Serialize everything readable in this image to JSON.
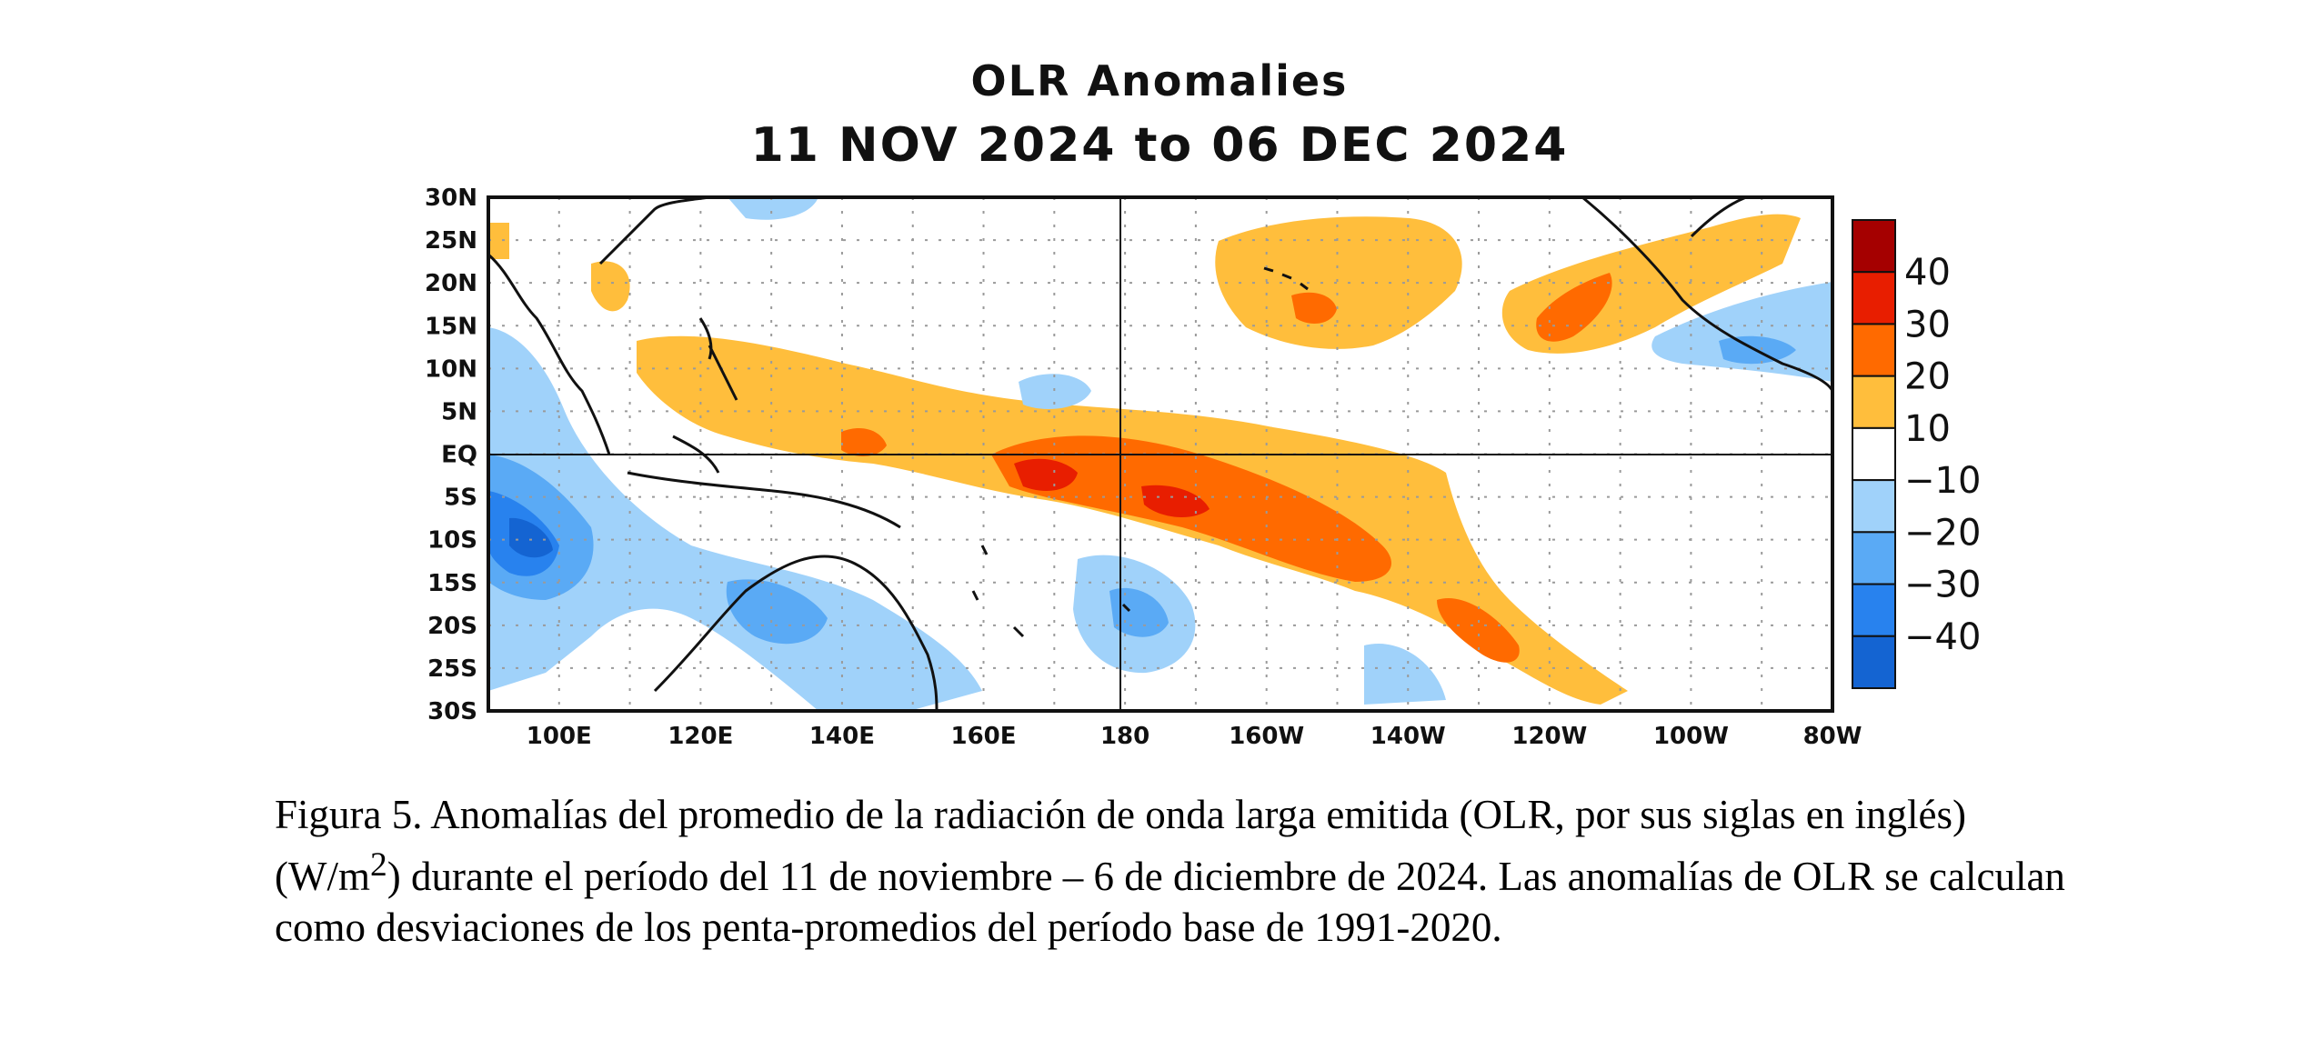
{
  "map": {
    "title_line1": "OLR Anomalies",
    "title_line2": "11 NOV 2024 to 06 DEC 2024",
    "lat_ticks": [
      "30N",
      "25N",
      "20N",
      "15N",
      "10N",
      "5N",
      "EQ",
      "5S",
      "10S",
      "15S",
      "20S",
      "25S",
      "30S"
    ],
    "lon_ticks": [
      "100E",
      "120E",
      "140E",
      "160E",
      "180",
      "160W",
      "140W",
      "120W",
      "100W",
      "80W"
    ],
    "colorbar": {
      "labels": [
        "40",
        "30",
        "20",
        "10",
        "−10",
        "−20",
        "−30",
        "−40"
      ],
      "colors": [
        "#a50000",
        "#e81e00",
        "#ff6a00",
        "#ffbe3c",
        "#ffffff",
        "#a0d2fa",
        "#5aaaf5",
        "#2882ee",
        "#1464d2"
      ]
    },
    "colors": {
      "pos10": "#ffbe3c",
      "pos20": "#ff6a00",
      "pos30": "#e81e00",
      "neg10": "#a0d2fa",
      "neg20": "#5aaaf5",
      "neg30": "#2882ee",
      "neg40": "#1464d2"
    }
  },
  "caption": {
    "part1": "Figura 5. Anomalías del promedio de la radiación de onda larga emitida (OLR, por sus siglas en inglés) (W/m",
    "sup": "2",
    "part2": ") durante el período del 11 de noviembre – 6 de diciembre de 2024.  Las anomalías de OLR se calculan como desviaciones de los penta-promedios del período base de 1991-2020."
  }
}
